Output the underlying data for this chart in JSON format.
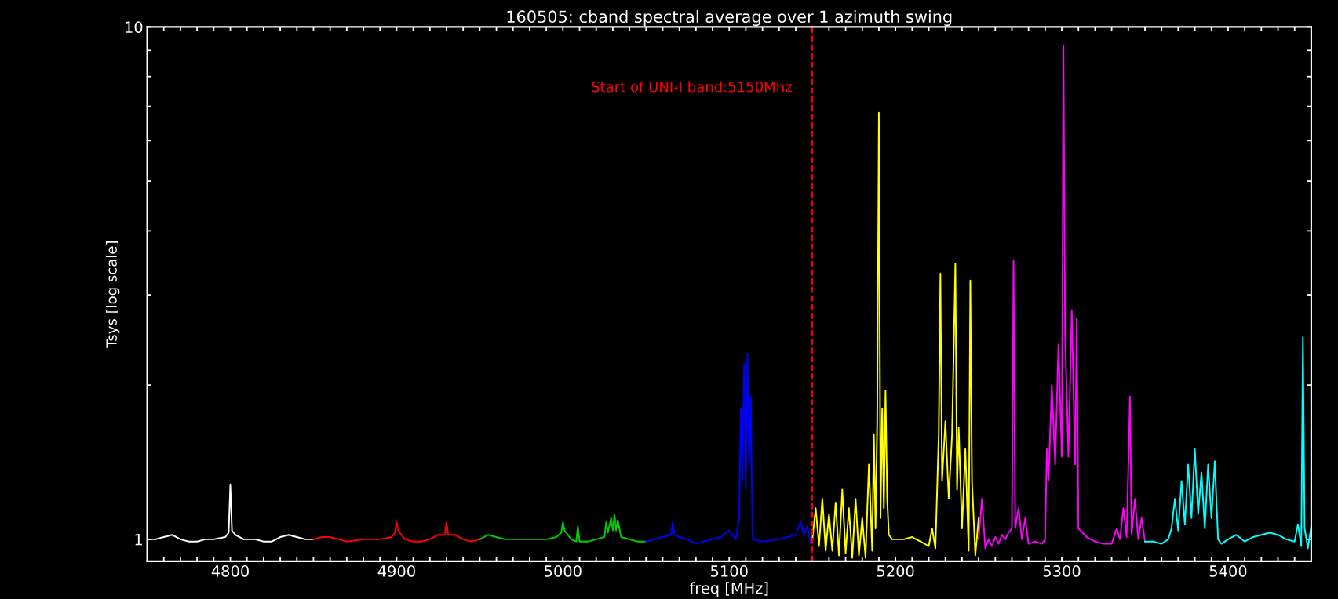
{
  "chart_data": {
    "type": "line",
    "title": "160505: cband spectral average over 1 azimuth swing",
    "xlabel": "freq [MHz]",
    "ylabel": "Tsys [log scale]",
    "log": "y",
    "grid": false,
    "legend": false,
    "line_style": "solid",
    "marker": "none",
    "xlim": [
      4750,
      5450
    ],
    "ylim": [
      0.906,
      10
    ],
    "xticks": [
      {
        "value": 4760,
        "label": null
      },
      {
        "value": 4770,
        "label": null
      },
      {
        "value": 4780,
        "label": null
      },
      {
        "value": 4790,
        "label": null
      },
      4800,
      {
        "value": 4810,
        "label": null
      },
      {
        "value": 4820,
        "label": null
      },
      {
        "value": 4830,
        "label": null
      },
      {
        "value": 4840,
        "label": null
      },
      {
        "value": 4850,
        "label": null
      },
      {
        "value": 4860,
        "label": null
      },
      {
        "value": 4870,
        "label": null
      },
      {
        "value": 4880,
        "label": null
      },
      {
        "value": 4890,
        "label": null
      },
      4900,
      {
        "value": 4910,
        "label": null
      },
      {
        "value": 4920,
        "label": null
      },
      {
        "value": 4930,
        "label": null
      },
      {
        "value": 4940,
        "label": null
      },
      {
        "value": 4950,
        "label": null
      },
      {
        "value": 4960,
        "label": null
      },
      {
        "value": 4970,
        "label": null
      },
      {
        "value": 4980,
        "label": null
      },
      {
        "value": 4990,
        "label": null
      },
      5000,
      {
        "value": 5010,
        "label": null
      },
      {
        "value": 5020,
        "label": null
      },
      {
        "value": 5030,
        "label": null
      },
      {
        "value": 5040,
        "label": null
      },
      {
        "value": 5050,
        "label": null
      },
      {
        "value": 5060,
        "label": null
      },
      {
        "value": 5070,
        "label": null
      },
      {
        "value": 5080,
        "label": null
      },
      {
        "value": 5090,
        "label": null
      },
      5100,
      {
        "value": 5110,
        "label": null
      },
      {
        "value": 5120,
        "label": null
      },
      {
        "value": 5130,
        "label": null
      },
      {
        "value": 5140,
        "label": null
      },
      {
        "value": 5150,
        "label": null
      },
      {
        "value": 5160,
        "label": null
      },
      {
        "value": 5170,
        "label": null
      },
      {
        "value": 5180,
        "label": null
      },
      {
        "value": 5190,
        "label": null
      },
      5200,
      {
        "value": 5210,
        "label": null
      },
      {
        "value": 5220,
        "label": null
      },
      {
        "value": 5230,
        "label": null
      },
      {
        "value": 5240,
        "label": null
      },
      {
        "value": 5250,
        "label": null
      },
      {
        "value": 5260,
        "label": null
      },
      {
        "value": 5270,
        "label": null
      },
      {
        "value": 5280,
        "label": null
      },
      {
        "value": 5290,
        "label": null
      },
      5300,
      {
        "value": 5310,
        "label": null
      },
      {
        "value": 5320,
        "label": null
      },
      {
        "value": 5330,
        "label": null
      },
      {
        "value": 5340,
        "label": null
      },
      {
        "value": 5350,
        "label": null
      },
      {
        "value": 5360,
        "label": null
      },
      {
        "value": 5370,
        "label": null
      },
      {
        "value": 5380,
        "label": null
      },
      {
        "value": 5390,
        "label": null
      },
      5400,
      {
        "value": 5410,
        "label": null
      },
      {
        "value": 5420,
        "label": null
      },
      {
        "value": 5430,
        "label": null
      },
      {
        "value": 5440,
        "label": null
      }
    ],
    "yticks": [
      1,
      {
        "value": 2,
        "label": null
      },
      {
        "value": 3,
        "label": null
      },
      {
        "value": 4,
        "label": null
      },
      {
        "value": 5,
        "label": null
      },
      {
        "value": 6,
        "label": null
      },
      {
        "value": 7,
        "label": null
      },
      {
        "value": 8,
        "label": null
      },
      {
        "value": 9,
        "label": null
      },
      10
    ],
    "ref_lines": [
      {
        "axis": "x",
        "value": 5150,
        "label": "Start of UNI-I band:5150Mhz",
        "color": "#ff0000",
        "line_style": "dashed"
      }
    ],
    "series": [
      {
        "color": "#ffffff",
        "x": [
          4750,
          4755,
          4760,
          4765,
          4770,
          4775,
          4780,
          4785,
          4790,
          4797,
          4799,
          4800,
          4801,
          4803,
          4808,
          4815,
          4820,
          4825,
          4830,
          4835,
          4840,
          4845,
          4850
        ],
        "values": [
          1.0,
          1.0,
          1.01,
          1.02,
          1.0,
          0.99,
          0.99,
          1.0,
          1.0,
          1.01,
          1.03,
          1.28,
          1.04,
          1.02,
          1.0,
          1.0,
          0.99,
          0.99,
          1.01,
          1.02,
          1.01,
          1.0,
          1.0
        ]
      },
      {
        "color": "#ff0000",
        "x": [
          4850,
          4855,
          4860,
          4865,
          4870,
          4880,
          4890,
          4897,
          4899,
          4900,
          4901,
          4905,
          4910,
          4915,
          4920,
          4925,
          4929,
          4930,
          4931,
          4935,
          4940,
          4945,
          4950
        ],
        "values": [
          1.0,
          1.01,
          1.01,
          1.0,
          0.99,
          1.0,
          1.0,
          1.01,
          1.03,
          1.08,
          1.04,
          1.0,
          0.99,
          0.99,
          1.0,
          1.02,
          1.02,
          1.08,
          1.02,
          1.02,
          1.0,
          0.99,
          1.0
        ]
      },
      {
        "color": "#00cc00",
        "x": [
          4950,
          4955,
          4960,
          4965,
          4970,
          4980,
          4990,
          4996,
          4999,
          5000,
          5001,
          5005,
          5008,
          5009,
          5010,
          5015,
          5020,
          5025,
          5026,
          5027,
          5029,
          5030,
          5031,
          5032,
          5033,
          5035,
          5040,
          5045,
          5050
        ],
        "values": [
          1.0,
          1.02,
          1.01,
          1.0,
          1.0,
          1.0,
          1.0,
          1.01,
          1.03,
          1.08,
          1.04,
          1.0,
          0.99,
          1.06,
          0.99,
          0.99,
          1.0,
          1.01,
          1.08,
          1.03,
          1.1,
          1.04,
          1.12,
          1.04,
          1.09,
          1.01,
          1.0,
          0.99,
          0.99
        ]
      },
      {
        "color": "#0000ff",
        "x": [
          5050,
          5055,
          5060,
          5065,
          5066,
          5067,
          5070,
          5075,
          5080,
          5085,
          5090,
          5095,
          5100,
          5104,
          5106,
          5107,
          5108,
          5109,
          5110,
          5111,
          5112,
          5113,
          5114,
          5120,
          5130,
          5140,
          5143,
          5145,
          5147,
          5149,
          5150
        ],
        "values": [
          0.99,
          1.0,
          1.01,
          1.02,
          1.08,
          1.02,
          1.01,
          1.0,
          0.98,
          0.99,
          1.0,
          1.01,
          1.04,
          1.0,
          1.1,
          1.8,
          1.3,
          2.2,
          1.25,
          2.3,
          1.4,
          1.9,
          1.0,
          0.99,
          1.0,
          1.02,
          1.08,
          1.02,
          1.06,
          0.98,
          1.0
        ]
      },
      {
        "color": "#ffff00",
        "x": [
          5150,
          5152,
          5154,
          5156,
          5158,
          5160,
          5162,
          5164,
          5166,
          5168,
          5170,
          5172,
          5174,
          5176,
          5178,
          5180,
          5182,
          5184,
          5186,
          5187,
          5188,
          5189,
          5190,
          5191,
          5192,
          5193,
          5194,
          5195,
          5196,
          5198,
          5205,
          5210,
          5215,
          5220,
          5222,
          5224,
          5226,
          5227,
          5228,
          5230,
          5232,
          5234,
          5236,
          5237,
          5238,
          5240,
          5242,
          5244,
          5245,
          5246,
          5248,
          5250
        ],
        "values": [
          1.0,
          1.15,
          0.97,
          1.2,
          0.95,
          1.12,
          0.95,
          1.18,
          0.93,
          1.25,
          0.94,
          1.15,
          0.92,
          1.2,
          0.93,
          1.1,
          0.92,
          1.4,
          0.95,
          1.6,
          1.05,
          1.7,
          6.8,
          1.1,
          1.8,
          1.15,
          1.95,
          1.2,
          1.02,
          1.0,
          1.0,
          1.01,
          0.99,
          0.97,
          1.05,
          0.96,
          1.6,
          3.3,
          1.3,
          1.7,
          1.2,
          1.6,
          3.45,
          1.25,
          1.65,
          1.05,
          1.5,
          0.95,
          3.2,
          1.3,
          0.93,
          1.1
        ]
      },
      {
        "color": "#ff00ff",
        "x": [
          5250,
          5252,
          5254,
          5256,
          5258,
          5260,
          5262,
          5264,
          5266,
          5268,
          5270,
          5271,
          5272,
          5274,
          5276,
          5278,
          5280,
          5284,
          5288,
          5290,
          5291,
          5292,
          5294,
          5296,
          5298,
          5300,
          5301,
          5302,
          5304,
          5306,
          5308,
          5309,
          5310,
          5315,
          5320,
          5325,
          5330,
          5333,
          5335,
          5337,
          5339,
          5341,
          5342,
          5344,
          5346,
          5348,
          5350
        ],
        "values": [
          1.0,
          1.2,
          0.96,
          1.0,
          0.97,
          1.01,
          0.98,
          1.02,
          1.0,
          1.03,
          1.05,
          3.5,
          1.05,
          1.15,
          1.0,
          1.1,
          0.98,
          0.99,
          0.98,
          1.0,
          1.5,
          1.3,
          2.0,
          1.4,
          2.4,
          1.45,
          9.2,
          2.5,
          1.45,
          2.8,
          1.4,
          2.7,
          1.05,
          1.01,
          0.99,
          0.98,
          0.98,
          1.05,
          1.0,
          1.15,
          1.01,
          1.9,
          1.02,
          1.2,
          1.0,
          1.1,
          0.99
        ]
      },
      {
        "color": "#00ffff",
        "x": [
          5350,
          5355,
          5360,
          5364,
          5366,
          5368,
          5370,
          5372,
          5374,
          5376,
          5378,
          5380,
          5382,
          5384,
          5386,
          5388,
          5390,
          5392,
          5394,
          5396,
          5400,
          5405,
          5410,
          5415,
          5420,
          5425,
          5430,
          5435,
          5440,
          5442,
          5444,
          5445,
          5446,
          5448,
          5450
        ],
        "values": [
          0.99,
          0.99,
          0.98,
          1.0,
          1.05,
          1.2,
          1.04,
          1.3,
          1.07,
          1.4,
          1.1,
          1.5,
          1.12,
          1.35,
          1.05,
          1.4,
          1.1,
          1.42,
          1.0,
          0.98,
          1.0,
          1.02,
          0.99,
          1.01,
          1.02,
          1.03,
          1.02,
          1.0,
          0.99,
          1.07,
          0.97,
          2.48,
          1.05,
          0.96,
          1.06
        ]
      }
    ]
  }
}
